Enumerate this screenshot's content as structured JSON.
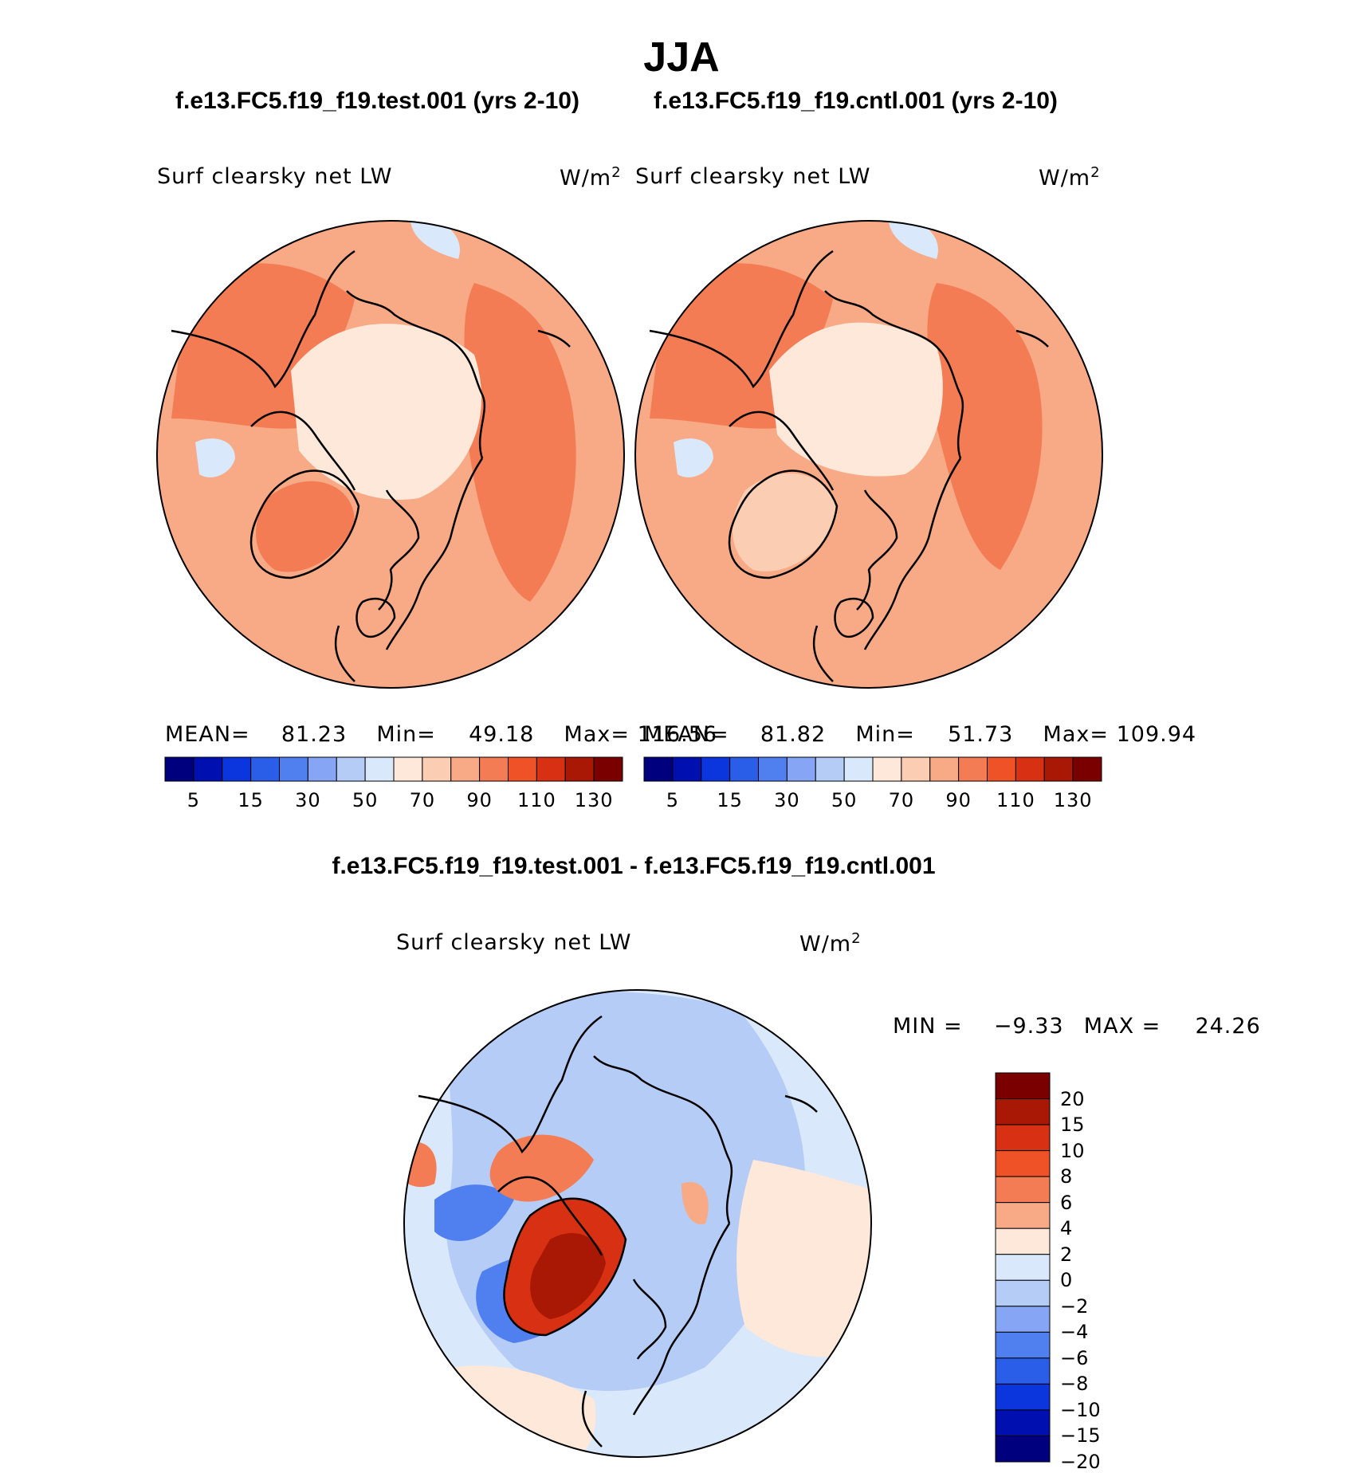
{
  "figure": {
    "season_title": "JJA",
    "color_fill": "#fbe4d3"
  },
  "panels": [
    {
      "case_title": "f.e13.FC5.f19_f19.test.001 (yrs 2-10)",
      "variable_label": "Surf clearsky net LW",
      "units_base": "W/m",
      "units_exp": "2",
      "stats": {
        "mean_label": "MEAN=",
        "mean": "81.23",
        "min_label": "Min=",
        "min": "49.18",
        "max_label": "Max=",
        "max": "116.56"
      }
    },
    {
      "case_title": "f.e13.FC5.f19_f19.cntl.001 (yrs 2-10)",
      "variable_label": "Surf clearsky net LW",
      "units_base": "W/m",
      "units_exp": "2",
      "stats": {
        "mean_label": "MEAN=",
        "mean": "81.82",
        "min_label": "Min=",
        "min": "51.73",
        "max_label": "Max=",
        "max": "109.94"
      }
    }
  ],
  "colorbar_top": {
    "colors": [
      "#00007f",
      "#0010b0",
      "#0b35dd",
      "#2a5de8",
      "#5080f0",
      "#86a6f5",
      "#b5ccf6",
      "#d9e8fa",
      "#fde8da",
      "#fbcdb3",
      "#f8a985",
      "#f47c54",
      "#f05227",
      "#d83012",
      "#a81804",
      "#7a0000"
    ],
    "tick_labels": [
      "5",
      "15",
      "30",
      "50",
      "70",
      "90",
      "110",
      "130"
    ]
  },
  "difference": {
    "title": "f.e13.FC5.f19_f19.test.001 - f.e13.FC5.f19_f19.cntl.001",
    "variable_label": "Surf clearsky net LW",
    "units_base": "W/m",
    "units_exp": "2",
    "min_label": "MIN =",
    "min": "−9.33",
    "max_label": "MAX =",
    "max": "24.26"
  },
  "colorbar_diff": {
    "colors_top_to_bottom": [
      "#7a0000",
      "#a81804",
      "#d83012",
      "#f05227",
      "#f47c54",
      "#f8a985",
      "#fde8da",
      "#d9e8fa",
      "#b5ccf6",
      "#86a6f5",
      "#5080f0",
      "#2a5de8",
      "#0b35dd",
      "#0010b0",
      "#00007f"
    ],
    "tick_labels": [
      "20",
      "15",
      "10",
      "8",
      "6",
      "4",
      "2",
      "0",
      "−2",
      "−4",
      "−6",
      "−8",
      "−10",
      "−15",
      "−20"
    ]
  }
}
